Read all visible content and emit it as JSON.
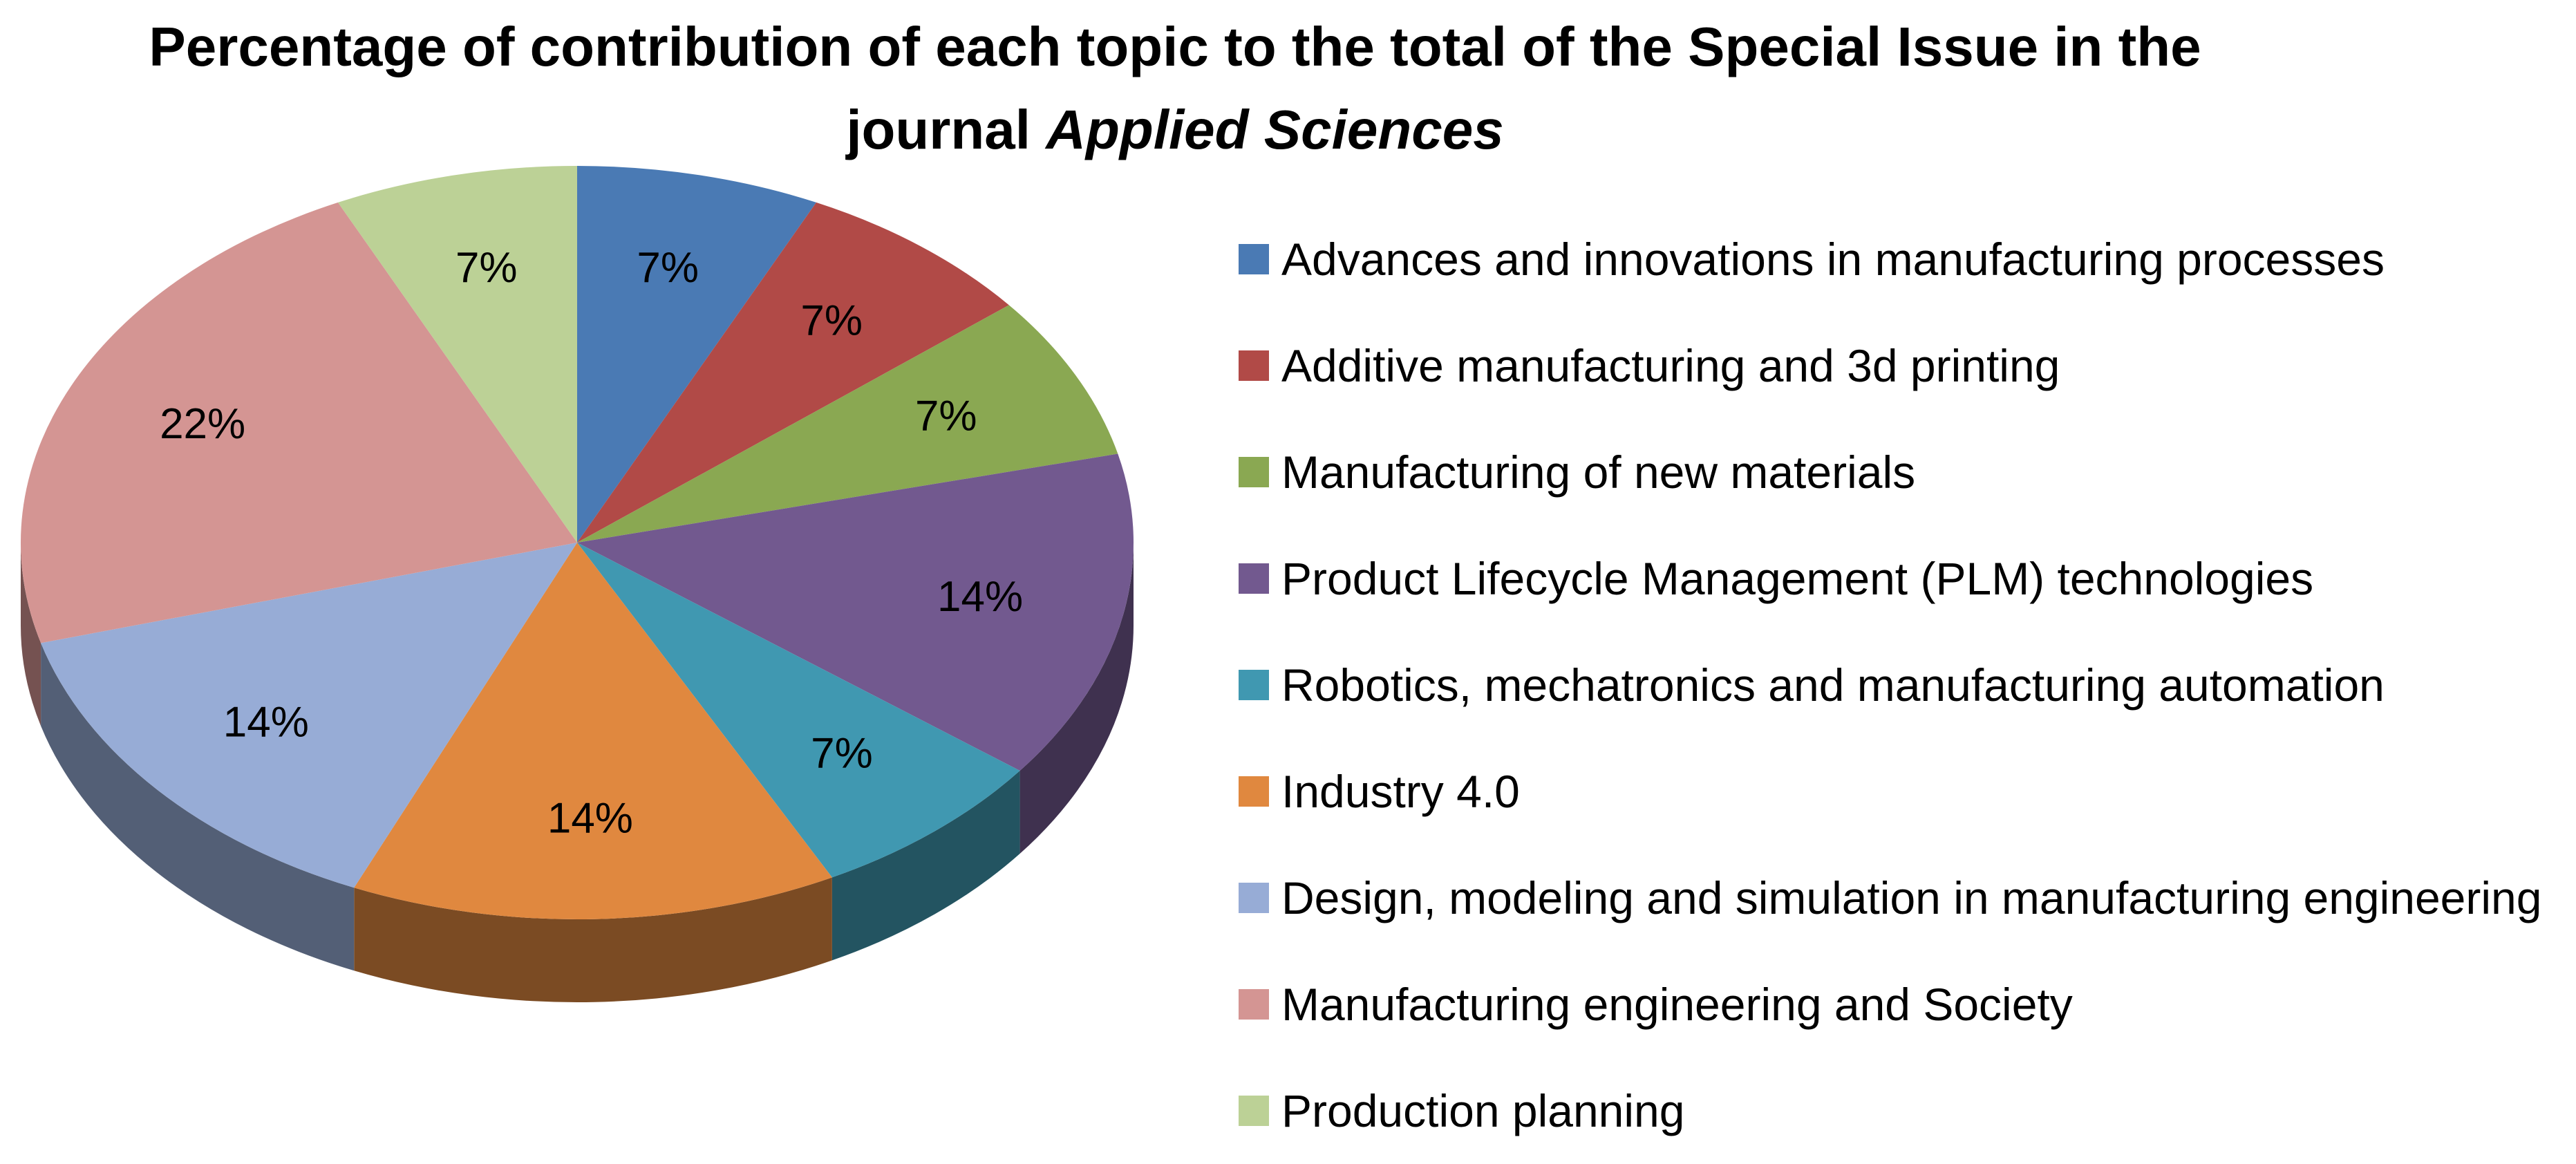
{
  "chart_data": {
    "type": "pie",
    "title_line1": "Percentage of contribution of each topic to the total of the Special Issue in the",
    "title_line2_plain": "journal ",
    "title_line2_italic": "Applied Sciences",
    "legend_placement": "right",
    "slices": [
      {
        "label": "Advances and innovations in manufacturing processes",
        "value": 7,
        "display": "7%",
        "color": "#4a7ab4"
      },
      {
        "label": "Additive manufacturing and 3d printing",
        "value": 7,
        "display": "7%",
        "color": "#b14a47"
      },
      {
        "label": "Manufacturing of new materials",
        "value": 7,
        "display": "7%",
        "color": "#8aa852"
      },
      {
        "label": "Product Lifecycle Management (PLM) technologies",
        "value": 14,
        "display": "14%",
        "color": "#72598f"
      },
      {
        "label": "Robotics, mechatronics and manufacturing automation",
        "value": 7,
        "display": "7%",
        "color": "#4098b1"
      },
      {
        "label": "Industry 4.0",
        "value": 14,
        "display": "14%",
        "color": "#e0883f"
      },
      {
        "label": "Design, modeling and simulation in manufacturing engineering",
        "value": 14,
        "display": "14%",
        "color": "#97acd6"
      },
      {
        "label": "Manufacturing engineering and Society",
        "value": 22,
        "display": "22%",
        "color": "#d49593"
      },
      {
        "label": "Production planning",
        "value": 7,
        "display": "7%",
        "color": "#bcd196"
      }
    ]
  }
}
